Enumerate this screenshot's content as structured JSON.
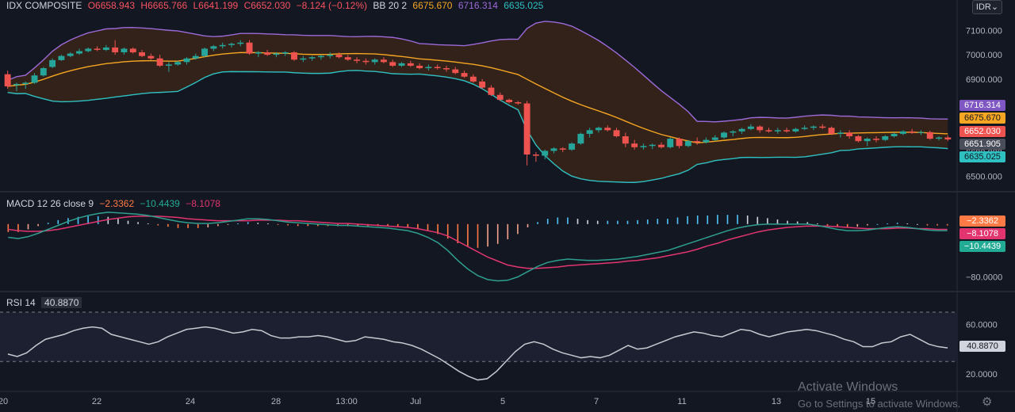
{
  "header": {
    "symbol": "IDX COMPOSITE",
    "open": "O6658.943",
    "high": "H6665.766",
    "low": "L6641.199",
    "close": "C6652.030",
    "change": "−8.124 (−0.12%)",
    "bb_label": "BB 20 2",
    "bb_basis": "6675.670",
    "bb_upper": "6716.314",
    "bb_lower": "6635.025"
  },
  "currency_button": "IDR",
  "macd_legend": {
    "label": "MACD 12 26 close 9",
    "hist": "−2.3362",
    "macd": "−10.4439",
    "signal": "−8.1078"
  },
  "rsi_legend": {
    "label": "RSI 14",
    "value": "40.8870"
  },
  "price_axis": {
    "ticks": [
      "7100.000",
      "7000.000",
      "6900.000",
      "6600.000",
      "6500.000"
    ],
    "badges": {
      "upper": "6716.314",
      "basis": "6675.670",
      "close": "6652.030",
      "crosshair": "6651.905",
      "lower": "6635.025"
    }
  },
  "macd_axis": {
    "tick": "−80.0000",
    "badges": {
      "hist": "−2.3362",
      "signal": "−8.1078",
      "macd": "−10.4439"
    }
  },
  "rsi_axis": {
    "ticks": [
      "60.0000",
      "20.0000"
    ],
    "badge": "40.8870"
  },
  "time_axis": [
    "20",
    "22",
    "24",
    "28",
    "13:00",
    "Jul",
    "5",
    "7",
    "11",
    "13",
    "15"
  ],
  "watermark": {
    "line1": "Activate Windows",
    "line2": "Go to Settings to activate Windows."
  },
  "colors": {
    "background": "#131722",
    "up": "#26a69a",
    "down": "#ef5350",
    "bb_basis": "#f5a623",
    "bb_upper": "#9c6ad8",
    "bb_lower": "#2fc1c2",
    "bb_fill": "#3a2418",
    "macd_line": "#2f9e8e",
    "signal_line": "#e2356f",
    "rsi_line": "#c7c9d1"
  },
  "chart_data": [
    {
      "type": "candlestick",
      "title": "IDX COMPOSITE",
      "ylim": [
        6450,
        7160
      ],
      "x": [
        "20",
        "",
        "22",
        "",
        "24",
        "",
        "",
        "28",
        "13:00",
        "",
        "Jul",
        "",
        "5",
        "",
        "",
        "7",
        "",
        "",
        "11",
        "",
        "",
        "13",
        "",
        "",
        "15"
      ],
      "candles": [
        [
          6920,
          6935,
          6860,
          6870
        ],
        [
          6875,
          6885,
          6850,
          6880
        ],
        [
          6880,
          6890,
          6860,
          6885
        ],
        [
          6885,
          6925,
          6880,
          6915
        ],
        [
          6915,
          6950,
          6910,
          6945
        ],
        [
          6950,
          6985,
          6945,
          6978
        ],
        [
          6978,
          7000,
          6975,
          6995
        ],
        [
          6995,
          7010,
          6990,
          7005
        ],
        [
          7005,
          7025,
          7000,
          7015
        ],
        [
          7015,
          7030,
          7010,
          7025
        ],
        [
          7025,
          7035,
          7015,
          7020
        ],
        [
          7020,
          7040,
          7015,
          7030
        ],
        [
          7030,
          7060,
          7000,
          7010
        ],
        [
          7010,
          7030,
          7000,
          7025
        ],
        [
          7025,
          7030,
          7005,
          7010
        ],
        [
          7010,
          7020,
          6990,
          6995
        ],
        [
          6995,
          7005,
          6980,
          6985
        ],
        [
          6985,
          7000,
          6950,
          6955
        ],
        [
          6955,
          6970,
          6930,
          6960
        ],
        [
          6960,
          6975,
          6955,
          6970
        ],
        [
          6970,
          6990,
          6960,
          6985
        ],
        [
          6985,
          7005,
          6980,
          6995
        ],
        [
          6995,
          7030,
          6990,
          7025
        ],
        [
          7025,
          7040,
          7015,
          7035
        ],
        [
          7035,
          7050,
          7025,
          7040
        ],
        [
          7040,
          7050,
          7030,
          7045
        ],
        [
          7045,
          7060,
          7035,
          7050
        ],
        [
          7050,
          7060,
          7000,
          7005
        ],
        [
          7005,
          7015,
          6990,
          7010
        ],
        [
          7010,
          7020,
          6995,
          7000
        ],
        [
          7000,
          7010,
          6990,
          7005
        ],
        [
          7005,
          7015,
          6995,
          7010
        ],
        [
          7010,
          7015,
          6975,
          6980
        ],
        [
          6980,
          6995,
          6970,
          6985
        ],
        [
          6985,
          6995,
          6975,
          6990
        ],
        [
          6990,
          7000,
          6980,
          6995
        ],
        [
          6995,
          7010,
          6985,
          7000
        ],
        [
          7000,
          7010,
          6985,
          6990
        ],
        [
          6990,
          7000,
          6975,
          6980
        ],
        [
          6980,
          6990,
          6965,
          6975
        ],
        [
          6975,
          6985,
          6960,
          6970
        ],
        [
          6970,
          6985,
          6960,
          6980
        ],
        [
          6980,
          6990,
          6965,
          6970
        ],
        [
          6970,
          6980,
          6950,
          6955
        ],
        [
          6955,
          6970,
          6950,
          6965
        ],
        [
          6965,
          6975,
          6950,
          6955
        ],
        [
          6955,
          6965,
          6940,
          6945
        ],
        [
          6945,
          6960,
          6935,
          6950
        ],
        [
          6950,
          6960,
          6940,
          6945
        ],
        [
          6945,
          6955,
          6930,
          6940
        ],
        [
          6940,
          6950,
          6920,
          6925
        ],
        [
          6925,
          6935,
          6905,
          6910
        ],
        [
          6910,
          6920,
          6885,
          6890
        ],
        [
          6890,
          6900,
          6860,
          6865
        ],
        [
          6865,
          6875,
          6830,
          6835
        ],
        [
          6835,
          6845,
          6810,
          6815
        ],
        [
          6815,
          6820,
          6800,
          6805
        ],
        [
          6805,
          6810,
          6795,
          6800
        ],
        [
          6800,
          6810,
          6545,
          6590
        ],
        [
          6590,
          6600,
          6560,
          6585
        ],
        [
          6585,
          6610,
          6570,
          6605
        ],
        [
          6605,
          6620,
          6595,
          6615
        ],
        [
          6615,
          6620,
          6600,
          6610
        ],
        [
          6610,
          6640,
          6605,
          6635
        ],
        [
          6635,
          6680,
          6630,
          6675
        ],
        [
          6675,
          6700,
          6660,
          6690
        ],
        [
          6690,
          6705,
          6680,
          6700
        ],
        [
          6700,
          6710,
          6685,
          6690
        ],
        [
          6690,
          6700,
          6660,
          6665
        ],
        [
          6665,
          6680,
          6620,
          6635
        ],
        [
          6635,
          6650,
          6610,
          6620
        ],
        [
          6620,
          6635,
          6610,
          6625
        ],
        [
          6625,
          6635,
          6612,
          6630
        ],
        [
          6630,
          6640,
          6615,
          6620
        ],
        [
          6620,
          6660,
          6615,
          6655
        ],
        [
          6655,
          6660,
          6615,
          6625
        ],
        [
          6625,
          6650,
          6620,
          6645
        ],
        [
          6645,
          6660,
          6630,
          6640
        ],
        [
          6640,
          6660,
          6635,
          6650
        ],
        [
          6650,
          6670,
          6645,
          6660
        ],
        [
          6660,
          6685,
          6655,
          6680
        ],
        [
          6680,
          6690,
          6665,
          6685
        ],
        [
          6685,
          6700,
          6675,
          6695
        ],
        [
          6695,
          6715,
          6690,
          6705
        ],
        [
          6705,
          6710,
          6680,
          6690
        ],
        [
          6690,
          6700,
          6680,
          6685
        ],
        [
          6685,
          6700,
          6675,
          6690
        ],
        [
          6690,
          6700,
          6680,
          6685
        ],
        [
          6685,
          6700,
          6680,
          6695
        ],
        [
          6695,
          6710,
          6690,
          6700
        ],
        [
          6700,
          6710,
          6690,
          6705
        ],
        [
          6705,
          6715,
          6695,
          6700
        ],
        [
          6700,
          6705,
          6670,
          6675
        ],
        [
          6675,
          6690,
          6660,
          6680
        ],
        [
          6680,
          6690,
          6655,
          6665
        ],
        [
          6665,
          6670,
          6640,
          6645
        ],
        [
          6645,
          6660,
          6625,
          6655
        ],
        [
          6655,
          6665,
          6640,
          6650
        ],
        [
          6650,
          6670,
          6645,
          6665
        ],
        [
          6665,
          6680,
          6660,
          6675
        ],
        [
          6675,
          6690,
          6670,
          6685
        ],
        [
          6685,
          6695,
          6675,
          6680
        ],
        [
          6680,
          6690,
          6670,
          6682
        ],
        [
          6682,
          6688,
          6650,
          6655
        ],
        [
          6655,
          6665,
          6648,
          6660
        ],
        [
          6660,
          6668,
          6645,
          6652
        ]
      ]
    },
    {
      "type": "line",
      "title": "MACD 12 26 close 9",
      "ylim": [
        -95,
        25
      ],
      "series": [
        {
          "name": "MACD",
          "values": [
            -20,
            -22,
            -19,
            -14,
            -8,
            -2,
            4,
            9,
            13,
            16,
            18,
            17,
            16,
            15,
            13,
            10,
            7,
            4,
            2,
            1,
            1,
            2,
            4,
            6,
            8,
            8,
            7,
            5,
            3,
            2,
            1,
            0,
            -1,
            -2,
            -2,
            -3,
            -4,
            -5,
            -6,
            -8,
            -10,
            -14,
            -20,
            -28,
            -40,
            -55,
            -68,
            -78,
            -84,
            -86,
            -85,
            -80,
            -72,
            -64,
            -58,
            -55,
            -53,
            -54,
            -55,
            -55,
            -54,
            -53,
            -51,
            -49,
            -46,
            -43,
            -40,
            -35,
            -30,
            -25,
            -20,
            -15,
            -10,
            -6,
            -3,
            -1,
            0,
            0,
            0,
            0,
            0,
            -2,
            -5,
            -8,
            -10,
            -10,
            -9,
            -7,
            -5,
            -4,
            -5,
            -7,
            -9,
            -10,
            -10
          ]
        },
        {
          "name": "Signal",
          "values": [
            -8,
            -10,
            -11,
            -11,
            -10,
            -8,
            -5,
            -2,
            1,
            4,
            7,
            9,
            11,
            12,
            12,
            12,
            11,
            10,
            8,
            7,
            6,
            5,
            5,
            5,
            5,
            6,
            6,
            6,
            5,
            5,
            4,
            3,
            2,
            1,
            1,
            0,
            -1,
            -2,
            -3,
            -4,
            -5,
            -7,
            -10,
            -13,
            -18,
            -26,
            -34,
            -42,
            -50,
            -56,
            -62,
            -65,
            -67,
            -67,
            -66,
            -65,
            -63,
            -62,
            -61,
            -60,
            -59,
            -58,
            -56,
            -55,
            -53,
            -51,
            -48,
            -45,
            -42,
            -38,
            -33,
            -29,
            -24,
            -20,
            -16,
            -12,
            -9,
            -7,
            -5,
            -4,
            -3,
            -3,
            -3,
            -4,
            -5,
            -6,
            -7,
            -7,
            -7,
            -6,
            -6,
            -7,
            -7,
            -8,
            -8
          ]
        },
        {
          "name": "Histogram",
          "values": [
            -12,
            -12,
            -8,
            -3,
            2,
            6,
            9,
            11,
            12,
            12,
            11,
            8,
            5,
            3,
            1,
            -2,
            -4,
            -6,
            -6,
            -6,
            -5,
            -3,
            -1,
            1,
            3,
            2,
            1,
            -1,
            -2,
            -3,
            -3,
            -3,
            -3,
            -3,
            -3,
            -3,
            -3,
            -3,
            -3,
            -4,
            -5,
            -7,
            -10,
            -15,
            -22,
            -29,
            -34,
            -36,
            -34,
            -30,
            -23,
            -15,
            -5,
            3,
            8,
            10,
            10,
            8,
            6,
            5,
            5,
            5,
            5,
            6,
            7,
            8,
            8,
            10,
            12,
            13,
            13,
            14,
            14,
            14,
            13,
            11,
            9,
            7,
            5,
            4,
            3,
            1,
            -2,
            -4,
            -5,
            -4,
            -2,
            0,
            1,
            2,
            1,
            0,
            -2,
            -2,
            -2
          ]
        }
      ]
    },
    {
      "type": "line",
      "title": "RSI 14",
      "ylim": [
        7,
        79
      ],
      "series": [
        {
          "name": "RSI",
          "values": [
            36,
            34,
            37,
            43,
            48,
            50,
            52,
            55,
            57,
            58,
            57,
            52,
            50,
            48,
            46,
            44,
            46,
            50,
            53,
            56,
            57,
            58,
            57,
            55,
            53,
            54,
            56,
            55,
            51,
            49,
            49,
            50,
            50,
            51,
            50,
            48,
            46,
            47,
            50,
            49,
            48,
            46,
            45,
            43,
            40,
            36,
            32,
            27,
            22,
            18,
            15,
            16,
            22,
            30,
            38,
            44,
            46,
            44,
            40,
            37,
            35,
            33,
            34,
            33,
            35,
            39,
            43,
            40,
            41,
            44,
            47,
            50,
            52,
            54,
            53,
            51,
            50,
            53,
            56,
            55,
            52,
            50,
            52,
            54,
            55,
            56,
            55,
            53,
            51,
            48,
            46,
            42,
            42,
            45,
            46,
            50,
            52,
            48,
            44,
            42,
            41
          ]
        }
      ]
    }
  ]
}
